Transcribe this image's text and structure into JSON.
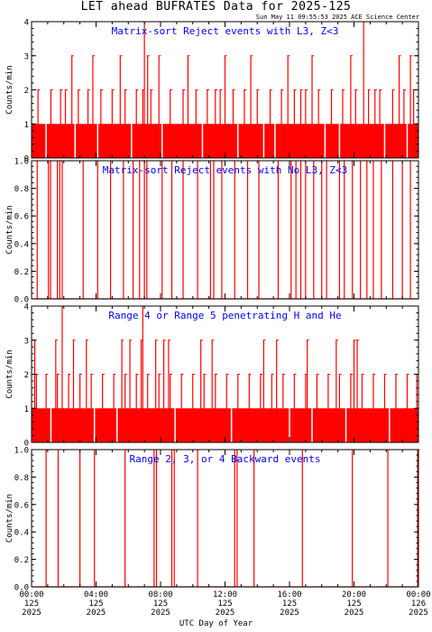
{
  "header": {
    "title": "LET ahead BUFRATES Data for 2025-125",
    "subtitle": "Sun May 11 09:55:53 2025 ACE Science Center"
  },
  "chart_data": [
    {
      "type": "bar",
      "title": "Matrix-sort Reject events with L3, Z<3",
      "ylabel": "Counts/min",
      "ylim": [
        0,
        4
      ],
      "yticks": [
        "0",
        "1",
        "2",
        "3",
        "4"
      ],
      "color": "#ff0000",
      "title_color": "#0000ff",
      "baseline": 1,
      "events": [
        [
          0.4,
          2
        ],
        [
          1.2,
          2
        ],
        [
          2.1,
          2
        ],
        [
          2.9,
          2
        ],
        [
          3.5,
          2
        ],
        [
          4.3,
          2
        ],
        [
          5.0,
          2
        ],
        [
          5.8,
          2
        ],
        [
          6.5,
          2
        ],
        [
          7.4,
          2
        ],
        [
          7.9,
          3
        ],
        [
          8.6,
          2
        ],
        [
          9.4,
          2
        ],
        [
          10.2,
          2
        ],
        [
          10.9,
          2
        ],
        [
          11.7,
          2
        ],
        [
          12.5,
          2
        ],
        [
          13.2,
          2
        ],
        [
          14.0,
          2
        ],
        [
          14.8,
          2
        ],
        [
          15.5,
          2
        ],
        [
          16.3,
          2
        ],
        [
          17.0,
          2
        ],
        [
          17.8,
          2
        ],
        [
          18.6,
          2
        ],
        [
          19.3,
          2
        ],
        [
          20.1,
          2
        ],
        [
          20.9,
          2
        ],
        [
          21.6,
          2
        ],
        [
          22.4,
          2
        ],
        [
          23.1,
          2
        ],
        [
          23.7,
          2
        ],
        [
          1.8,
          2
        ],
        [
          3.8,
          3
        ],
        [
          6.9,
          2
        ],
        [
          11.4,
          2
        ],
        [
          16.7,
          2
        ],
        [
          21.3,
          2
        ],
        [
          5.5,
          3
        ],
        [
          9.7,
          3
        ],
        [
          13.6,
          3
        ],
        [
          17.4,
          3
        ],
        [
          2.5,
          3
        ],
        [
          7.2,
          3
        ],
        [
          12.0,
          3
        ],
        [
          15.9,
          3
        ],
        [
          19.8,
          3
        ],
        [
          22.8,
          3
        ],
        [
          23.5,
          3
        ],
        [
          7.0,
          4
        ],
        [
          20.6,
          4
        ]
      ],
      "gaps": [
        0.9,
        2.7,
        4.1,
        6.2,
        8.1,
        10.6,
        12.8,
        14.4,
        15.1,
        18.2,
        19.1,
        21.9,
        23.3
      ]
    },
    {
      "type": "bar",
      "title": "Matrix-sort Reject events with No L3, Z<3",
      "ylabel": "Counts/min",
      "ylim": [
        0,
        1
      ],
      "yticks": [
        "0.0",
        "0.2",
        "0.4",
        "0.6",
        "0.8",
        "1.0"
      ],
      "color": "#ff0000",
      "title_color": "#0000ff",
      "baseline": 0,
      "events": [
        [
          0.35,
          1
        ],
        [
          1.05,
          1
        ],
        [
          1.18,
          1
        ],
        [
          1.6,
          1
        ],
        [
          1.75,
          1
        ],
        [
          1.9,
          1
        ],
        [
          3.2,
          1
        ],
        [
          4.1,
          1
        ],
        [
          4.9,
          1
        ],
        [
          5.7,
          1
        ],
        [
          6.3,
          1
        ],
        [
          6.7,
          1
        ],
        [
          7.0,
          1
        ],
        [
          7.15,
          1
        ],
        [
          8.1,
          1
        ],
        [
          8.7,
          1
        ],
        [
          9.4,
          1
        ],
        [
          10.3,
          1
        ],
        [
          11.1,
          1
        ],
        [
          11.3,
          1
        ],
        [
          11.8,
          1
        ],
        [
          12.6,
          1
        ],
        [
          13.4,
          1
        ],
        [
          14.1,
          1
        ],
        [
          15.3,
          1
        ],
        [
          16.1,
          1
        ],
        [
          16.4,
          1
        ],
        [
          16.7,
          1
        ],
        [
          17.0,
          1
        ],
        [
          17.5,
          1
        ],
        [
          18.0,
          1
        ],
        [
          18.3,
          1
        ],
        [
          19.1,
          1
        ],
        [
          19.4,
          1
        ],
        [
          19.9,
          1
        ],
        [
          20.4,
          1
        ],
        [
          20.8,
          1
        ],
        [
          21.2,
          1
        ],
        [
          21.7,
          1
        ],
        [
          22.4,
          1
        ],
        [
          23.0,
          1
        ],
        [
          23.5,
          1
        ]
      ],
      "gaps": []
    },
    {
      "type": "bar",
      "title": "Range 4 or Range 5 penetrating H and He",
      "ylabel": "Counts/min",
      "ylim": [
        0,
        4
      ],
      "yticks": [
        "0",
        "1",
        "2",
        "3",
        "4"
      ],
      "color": "#ff0000",
      "title_color": "#0000ff",
      "baseline": 1,
      "events": [
        [
          0.3,
          2
        ],
        [
          0.9,
          2
        ],
        [
          1.6,
          2
        ],
        [
          2.3,
          2
        ],
        [
          3.0,
          2
        ],
        [
          3.7,
          2
        ],
        [
          4.4,
          2
        ],
        [
          5.1,
          2
        ],
        [
          5.8,
          2
        ],
        [
          6.5,
          2
        ],
        [
          7.2,
          2
        ],
        [
          7.9,
          2
        ],
        [
          8.6,
          2
        ],
        [
          9.3,
          2
        ],
        [
          10.0,
          2
        ],
        [
          10.7,
          2
        ],
        [
          11.4,
          2
        ],
        [
          12.1,
          2
        ],
        [
          12.8,
          2
        ],
        [
          13.5,
          2
        ],
        [
          14.2,
          2
        ],
        [
          14.9,
          2
        ],
        [
          15.6,
          2
        ],
        [
          16.3,
          2
        ],
        [
          17.0,
          2
        ],
        [
          17.7,
          2
        ],
        [
          18.4,
          2
        ],
        [
          19.1,
          2
        ],
        [
          19.8,
          2
        ],
        [
          20.5,
          2
        ],
        [
          21.2,
          2
        ],
        [
          21.9,
          2
        ],
        [
          22.6,
          2
        ],
        [
          23.3,
          2
        ],
        [
          23.9,
          2
        ],
        [
          0.2,
          3
        ],
        [
          1.5,
          3
        ],
        [
          2.6,
          3
        ],
        [
          3.4,
          3
        ],
        [
          5.6,
          3
        ],
        [
          6.1,
          3
        ],
        [
          6.8,
          3
        ],
        [
          7.7,
          3
        ],
        [
          8.2,
          3
        ],
        [
          8.5,
          3
        ],
        [
          10.5,
          3
        ],
        [
          11.2,
          3
        ],
        [
          14.4,
          3
        ],
        [
          15.2,
          3
        ],
        [
          17.1,
          3
        ],
        [
          18.9,
          3
        ],
        [
          20.0,
          3
        ],
        [
          20.2,
          3
        ],
        [
          1.9,
          4
        ],
        [
          6.9,
          4
        ]
      ],
      "gaps": [
        1.2,
        3.9,
        5.3,
        8.9,
        12.4,
        16.0,
        17.4,
        19.5,
        22.2
      ]
    },
    {
      "type": "bar",
      "title": "Range 2, 3, or 4 Backward events",
      "ylabel": "Counts/min",
      "ylim": [
        0,
        1
      ],
      "yticks": [
        "0.0",
        "0.2",
        "0.4",
        "0.6",
        "0.8",
        "1.0"
      ],
      "color": "#ff0000",
      "title_color": "#0000ff",
      "baseline": 0,
      "events": [
        [
          0.9,
          1
        ],
        [
          1.65,
          1
        ],
        [
          3.0,
          1
        ],
        [
          3.9,
          1
        ],
        [
          5.8,
          1
        ],
        [
          7.6,
          1
        ],
        [
          7.75,
          1
        ],
        [
          8.7,
          1
        ],
        [
          8.85,
          1
        ],
        [
          10.3,
          1
        ],
        [
          12.6,
          1
        ],
        [
          12.75,
          1
        ],
        [
          13.8,
          1
        ],
        [
          16.8,
          1
        ],
        [
          19.9,
          1
        ],
        [
          22.1,
          1
        ],
        [
          23.95,
          1
        ]
      ],
      "gaps": []
    }
  ],
  "x_axis": {
    "label": "UTC Day of Year",
    "xlim": [
      0,
      24
    ],
    "ticks": [
      {
        "value": 0,
        "time": "00:00",
        "doy": "125",
        "year": "2025"
      },
      {
        "value": 4,
        "time": "04:00",
        "doy": "125",
        "year": "2025"
      },
      {
        "value": 8,
        "time": "08:00",
        "doy": "125",
        "year": "2025"
      },
      {
        "value": 12,
        "time": "12:00",
        "doy": "125",
        "year": "2025"
      },
      {
        "value": 16,
        "time": "16:00",
        "doy": "125",
        "year": "2025"
      },
      {
        "value": 20,
        "time": "20:00",
        "doy": "125",
        "year": "2025"
      },
      {
        "value": 24,
        "time": "00:00",
        "doy": "126",
        "year": "2025"
      }
    ]
  }
}
